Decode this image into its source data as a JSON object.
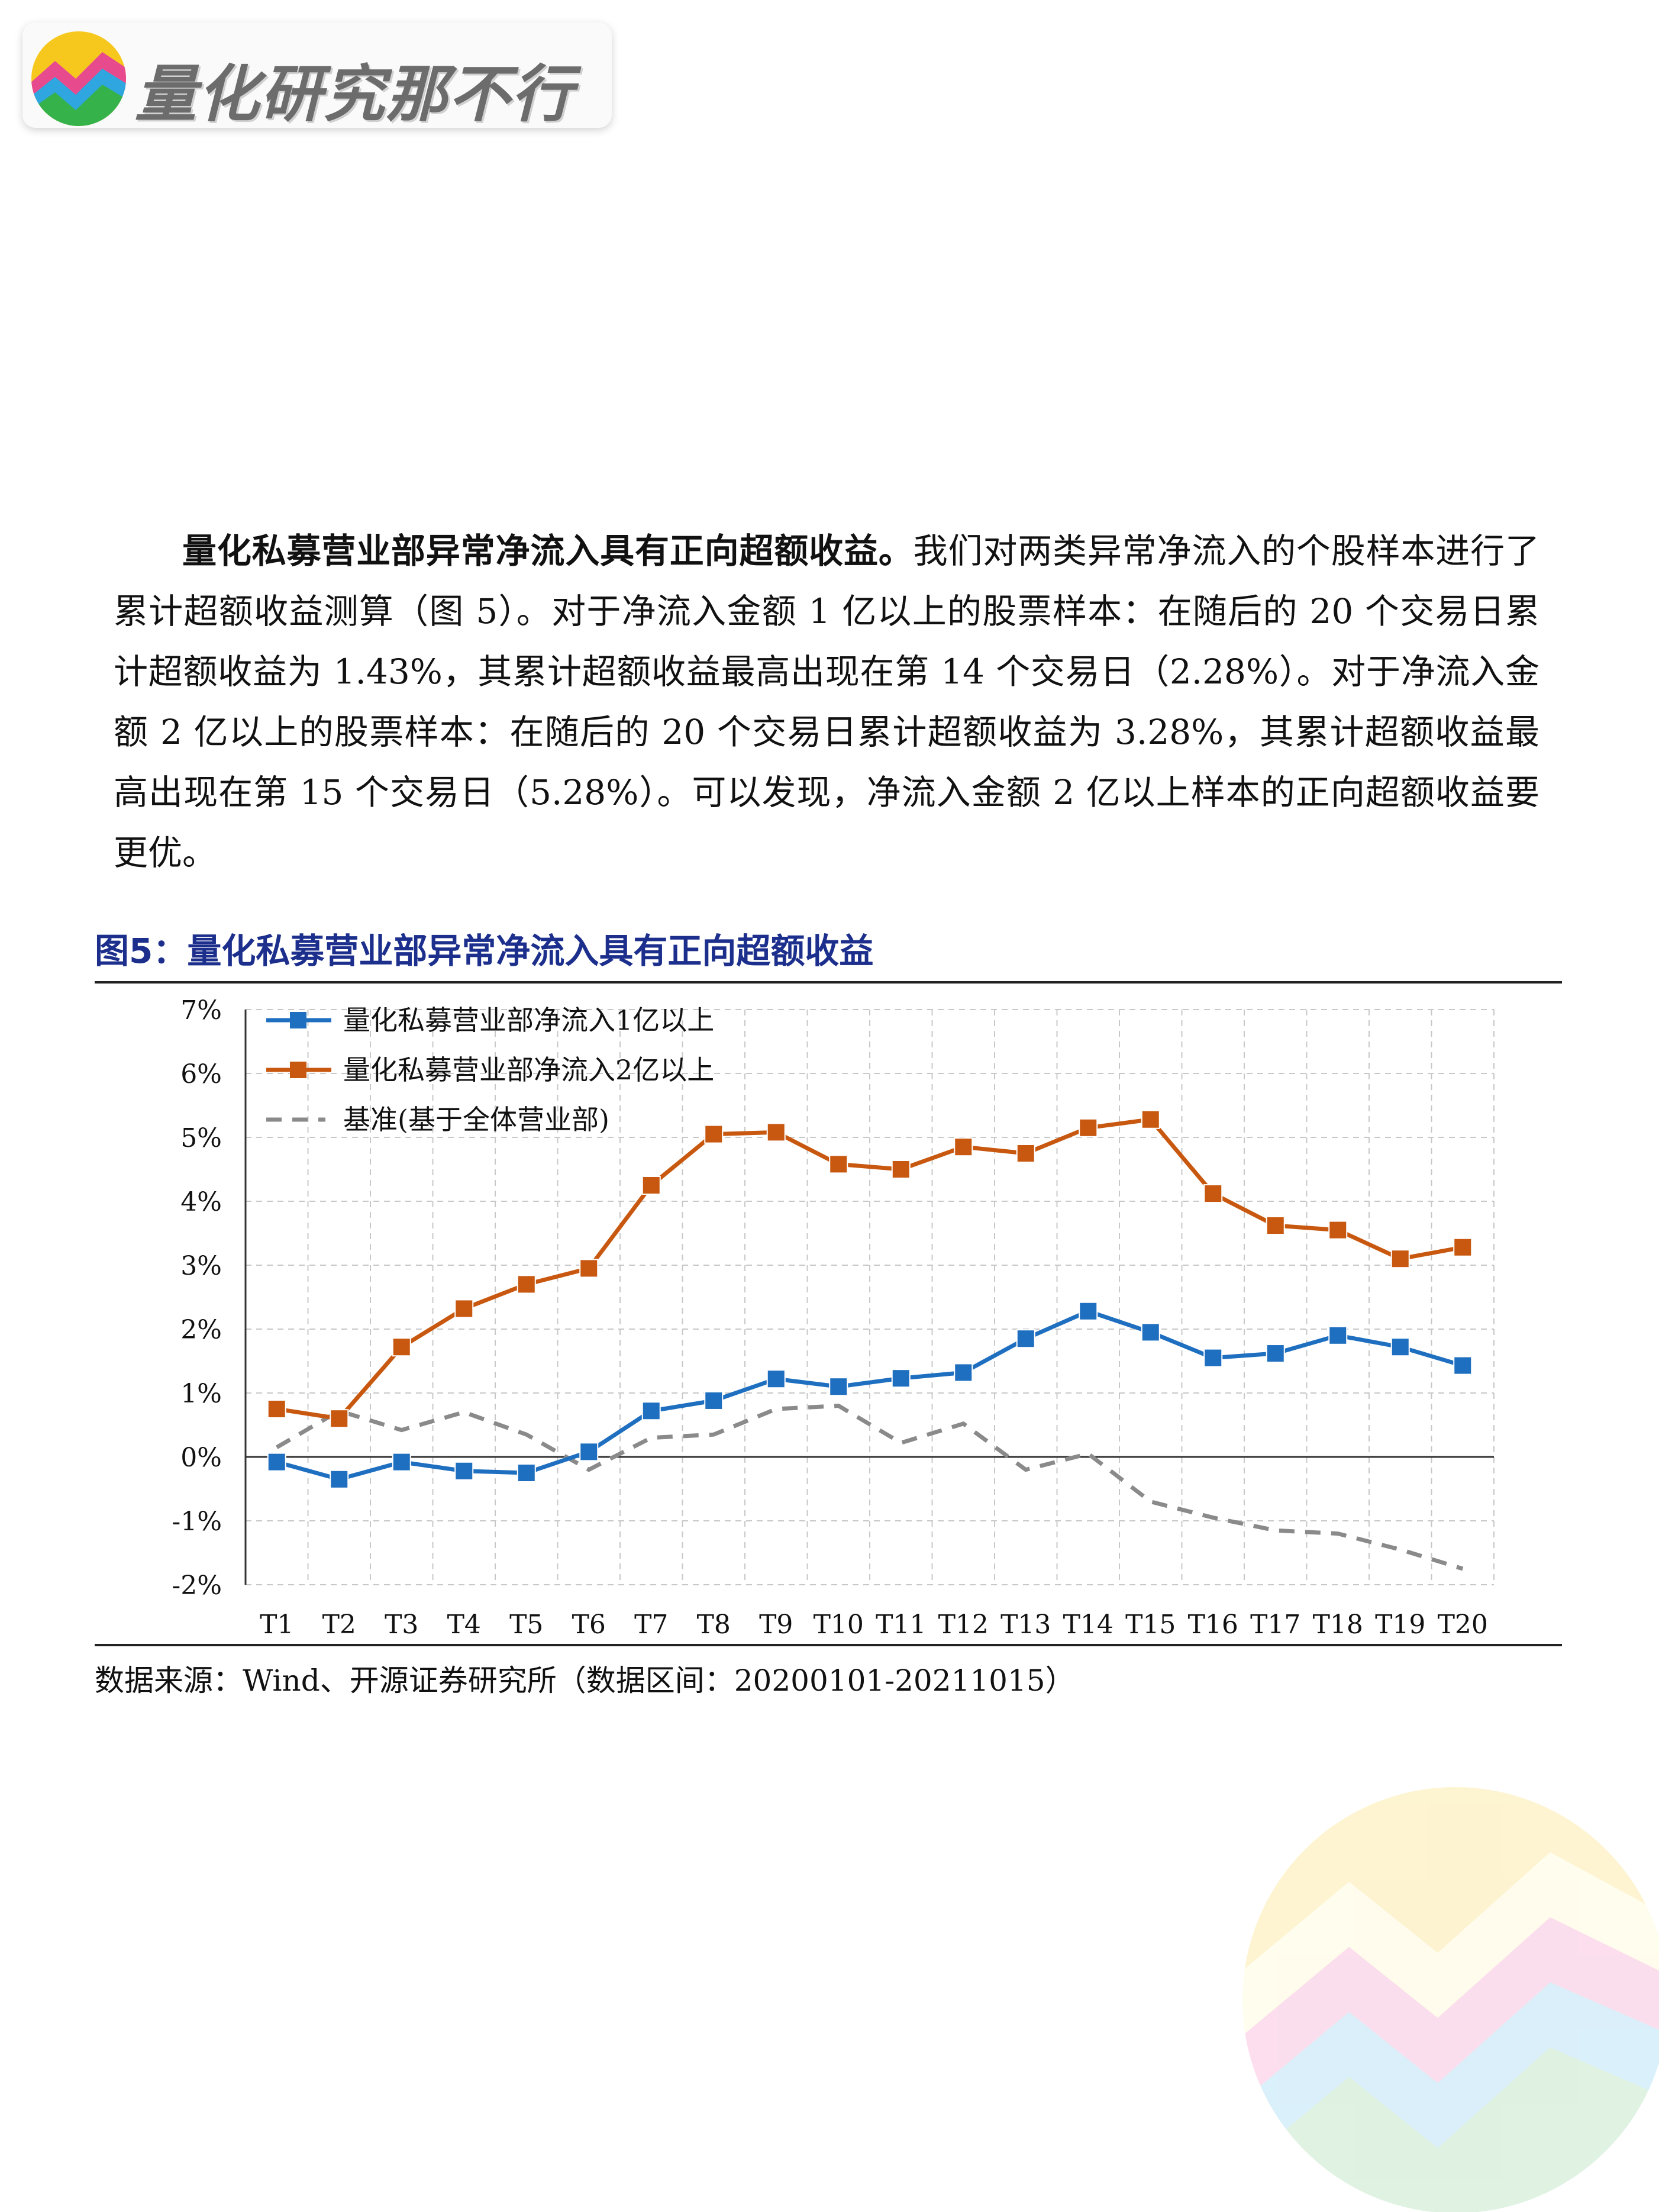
{
  "brand": {
    "name": "量化研究那不行",
    "colors": {
      "yellow": "#f6c81e",
      "pink": "#e84a8e",
      "blue": "#2fa6e0",
      "green": "#35b24a"
    }
  },
  "body": {
    "lead_bold": "量化私募营业部异常净流入具有正向超额收益。",
    "text": "我们对两类异常净流入的个股样本进行了累计超额收益测算（图 5）。对于净流入金额 1 亿以上的股票样本：在随后的 20 个交易日累计超额收益为 1.43%，其累计超额收益最高出现在第 14 个交易日（2.28%）。对于净流入金额 2 亿以上的股票样本：在随后的 20 个交易日累计超额收益为 3.28%，其累计超额收益最高出现在第 15 个交易日（5.28%）。可以发现，净流入金额 2 亿以上样本的正向超额收益要更优。"
  },
  "figure": {
    "title": "图5：量化私募营业部异常净流入具有正向超额收益",
    "source": "数据来源：Wind、开源证券研究所（数据区间：20200101-20211015）"
  },
  "chart_data": {
    "type": "line",
    "title": "",
    "xlabel": "",
    "ylabel": "",
    "categories": [
      "T1",
      "T2",
      "T3",
      "T4",
      "T5",
      "T6",
      "T7",
      "T8",
      "T9",
      "T10",
      "T11",
      "T12",
      "T13",
      "T14",
      "T15",
      "T16",
      "T17",
      "T18",
      "T19",
      "T20"
    ],
    "ylim": [
      -2,
      7
    ],
    "yticks": [
      "7%",
      "6%",
      "5%",
      "4%",
      "3%",
      "2%",
      "1%",
      "0%",
      "-1%",
      "-2%"
    ],
    "ytick_values": [
      7,
      6,
      5,
      4,
      3,
      2,
      1,
      0,
      -1,
      -2
    ],
    "grid": true,
    "legend_position": "top-left",
    "series": [
      {
        "name": "量化私募营业部净流入1亿以上",
        "color": "#1f6fc0",
        "style": "solid-square",
        "values": [
          -0.08,
          -0.35,
          -0.08,
          -0.22,
          -0.25,
          0.08,
          0.72,
          0.88,
          1.22,
          1.1,
          1.23,
          1.32,
          1.85,
          2.28,
          1.95,
          1.55,
          1.62,
          1.9,
          1.72,
          1.43
        ]
      },
      {
        "name": "量化私募营业部净流入2亿以上",
        "color": "#c8580f",
        "style": "solid-square",
        "values": [
          0.75,
          0.6,
          1.72,
          2.32,
          2.7,
          2.95,
          4.25,
          5.05,
          5.08,
          4.58,
          4.5,
          4.85,
          4.75,
          5.15,
          5.28,
          4.12,
          3.62,
          3.55,
          3.1,
          3.28
        ]
      },
      {
        "name": "基准(基于全体营业部)",
        "color": "#8a8a8a",
        "style": "dashed",
        "values": [
          0.15,
          0.72,
          0.42,
          0.7,
          0.35,
          -0.2,
          0.3,
          0.35,
          0.75,
          0.8,
          0.22,
          0.52,
          -0.2,
          0.05,
          -0.7,
          -0.95,
          -1.15,
          -1.2,
          -1.45,
          -1.75
        ]
      }
    ]
  }
}
